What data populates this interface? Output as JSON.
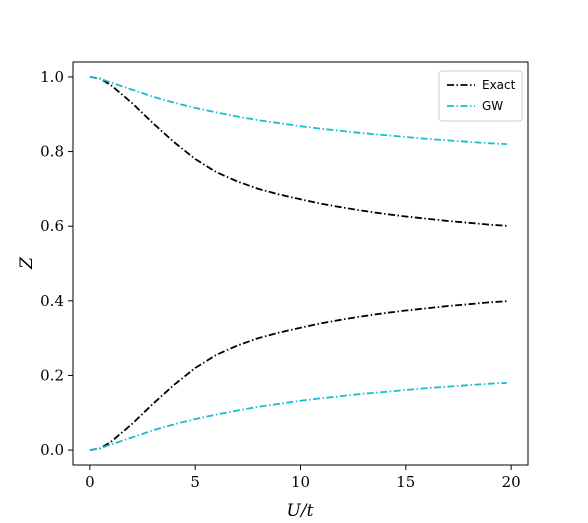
{
  "chart_data": {
    "type": "line",
    "title": "",
    "xlabel": "U/t",
    "ylabel": "Z",
    "xlim": [
      -0.8,
      20.8
    ],
    "ylim": [
      -0.04,
      1.04
    ],
    "xticks": [
      0,
      5,
      10,
      15,
      20
    ],
    "xtick_labels": [
      "0",
      "5",
      "10",
      "15",
      "20"
    ],
    "yticks": [
      0.0,
      0.2,
      0.4,
      0.6,
      0.8,
      1.0
    ],
    "ytick_labels": [
      "0.0",
      "0.2",
      "0.4",
      "0.6",
      "0.8",
      "1.0"
    ],
    "grid": false,
    "legend": {
      "position": "top-right",
      "entries": [
        {
          "label": "Exact",
          "color": "#000000",
          "style": "dash-dot"
        },
        {
          "label": "GW",
          "color": "#17becf",
          "style": "dash-dot"
        }
      ]
    },
    "x": [
      0,
      0.5,
      1,
      2,
      3,
      4,
      5,
      6,
      7,
      8,
      9,
      10,
      11,
      12,
      13,
      14,
      15,
      16,
      17,
      18,
      19,
      19.8
    ],
    "series": [
      {
        "name": "Exact",
        "color": "#000000",
        "values": [
          1.0,
          0.995,
          0.978,
          0.93,
          0.876,
          0.825,
          0.78,
          0.745,
          0.72,
          0.7,
          0.685,
          0.672,
          0.66,
          0.65,
          0.641,
          0.633,
          0.626,
          0.62,
          0.614,
          0.609,
          0.604,
          0.601
        ]
      },
      {
        "name": "Exact",
        "color": "#000000",
        "values": [
          0.0,
          0.005,
          0.022,
          0.07,
          0.124,
          0.175,
          0.22,
          0.255,
          0.28,
          0.3,
          0.315,
          0.328,
          0.34,
          0.35,
          0.359,
          0.367,
          0.374,
          0.38,
          0.386,
          0.391,
          0.396,
          0.399
        ]
      },
      {
        "name": "GW",
        "color": "#17becf",
        "values": [
          1.0,
          0.995,
          0.985,
          0.966,
          0.947,
          0.931,
          0.917,
          0.905,
          0.894,
          0.884,
          0.876,
          0.868,
          0.861,
          0.855,
          0.849,
          0.844,
          0.839,
          0.834,
          0.83,
          0.826,
          0.822,
          0.82
        ]
      },
      {
        "name": "GW",
        "color": "#17becf",
        "values": [
          0.0,
          0.005,
          0.015,
          0.034,
          0.053,
          0.069,
          0.083,
          0.095,
          0.106,
          0.116,
          0.124,
          0.132,
          0.139,
          0.145,
          0.151,
          0.156,
          0.161,
          0.166,
          0.17,
          0.174,
          0.178,
          0.18
        ]
      }
    ]
  }
}
